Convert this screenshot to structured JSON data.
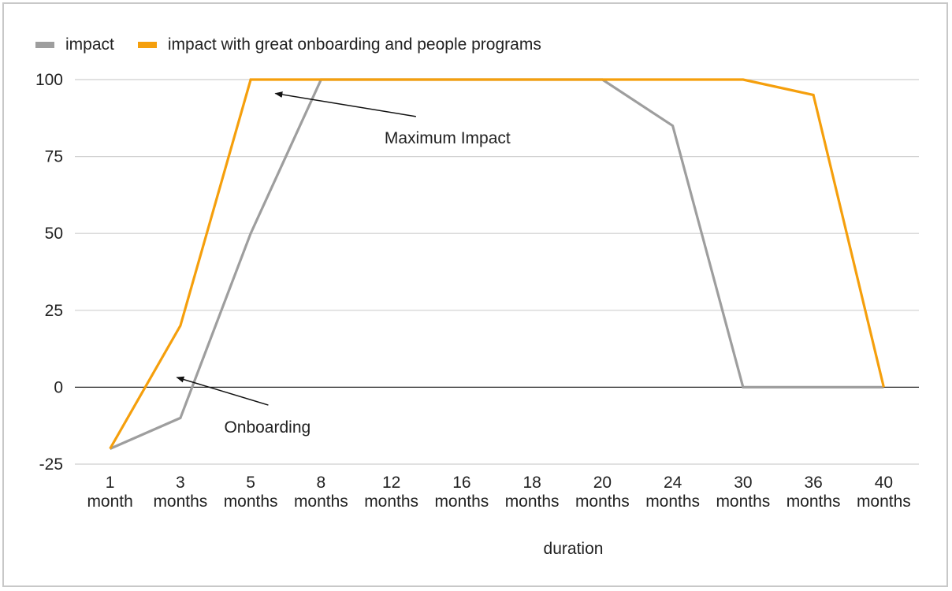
{
  "chart_data": {
    "type": "line",
    "title": "",
    "xlabel": "duration",
    "ylabel": "",
    "ylim": [
      -25,
      100
    ],
    "yticks": [
      -25,
      0,
      25,
      50,
      75,
      100
    ],
    "grid": true,
    "legend": "top-left",
    "categories": [
      [
        "1",
        "month"
      ],
      [
        "3",
        "months"
      ],
      [
        "5",
        "months"
      ],
      [
        "8",
        "months"
      ],
      [
        "12",
        "months"
      ],
      [
        "16",
        "months"
      ],
      [
        "18",
        "months"
      ],
      [
        "20",
        "months"
      ],
      [
        "24",
        "months"
      ],
      [
        "30",
        "months"
      ],
      [
        "36",
        "months"
      ],
      [
        "40",
        "months"
      ]
    ],
    "series": [
      {
        "name": "impact",
        "color": "#9e9e9e",
        "values": [
          -20,
          -10,
          50,
          100,
          100,
          100,
          100,
          100,
          85,
          0,
          0,
          0
        ]
      },
      {
        "name": "impact with great onboarding and people programs",
        "color": "#f59f0c",
        "values": [
          -20,
          20,
          100,
          100,
          100,
          100,
          100,
          100,
          100,
          100,
          95,
          0
        ]
      }
    ],
    "annotations": [
      {
        "text": "Maximum Impact",
        "from": [
          4.35,
          88
        ],
        "to": [
          2.35,
          95.5
        ]
      },
      {
        "text": "Onboarding",
        "from": [
          2.25,
          -5.8
        ],
        "to": [
          0.95,
          3.2
        ]
      }
    ]
  }
}
